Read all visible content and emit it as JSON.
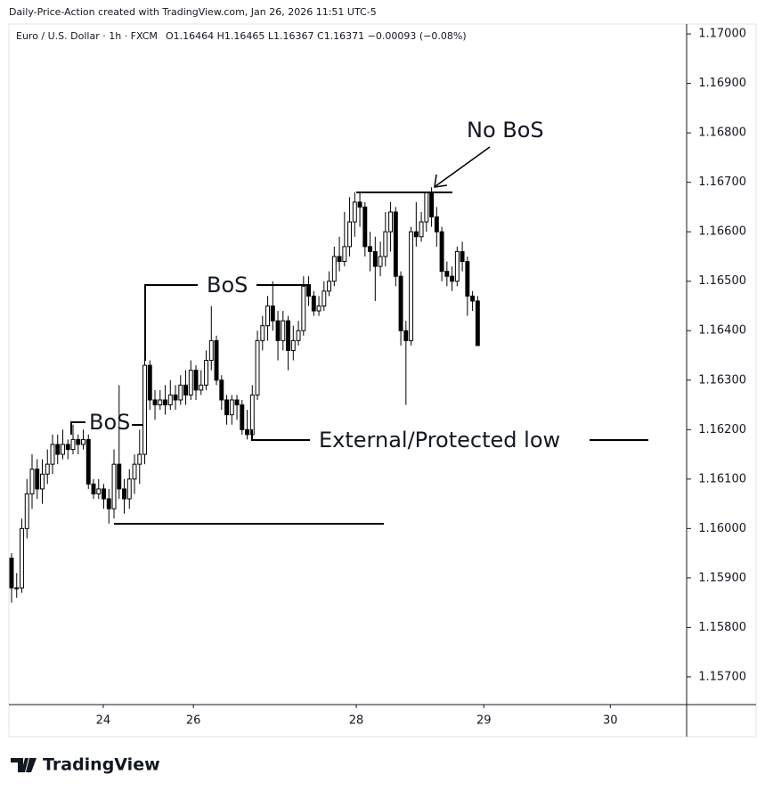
{
  "header": {
    "attribution": "Daily-Price-Action created with TradingView.com, Jan 26, 2026 11:51 UTC-5",
    "symbol": "Euro / U.S. Dollar · 1h · FXCM",
    "ohlc_legend": "O1.16464 H1.16465 L1.16367 C1.16371 −0.00093 (−0.08%)"
  },
  "chart_data": {
    "type": "candlestick",
    "open": [
      1.1594,
      1.1588,
      1.1588,
      1.16,
      1.1607,
      1.1612,
      1.1608,
      1.1611,
      1.1613,
      1.1617,
      1.1615,
      1.1617,
      1.1616,
      1.1618,
      1.1617,
      1.1618,
      1.1609,
      1.1607,
      1.1608,
      1.1606,
      1.1604,
      1.1613,
      1.1608,
      1.1606,
      1.161,
      1.1613,
      1.1615,
      1.1633,
      1.1626,
      1.1625,
      1.1626,
      1.1625,
      1.1627,
      1.1626,
      1.1629,
      1.1627,
      1.1632,
      1.1628,
      1.1629,
      1.1634,
      1.1638,
      1.163,
      1.1626,
      1.1623,
      1.1626,
      1.1625,
      1.162,
      1.1619,
      1.1627,
      1.1638,
      1.1641,
      1.1645,
      1.1642,
      1.1638,
      1.1642,
      1.1636,
      1.1638,
      1.164,
      1.1649,
      1.1647,
      1.1644,
      1.1645,
      1.1648,
      1.165,
      1.1655,
      1.1654,
      1.1657,
      1.1662,
      1.1666,
      1.1665,
      1.1657,
      1.1656,
      1.1653,
      1.1655,
      1.166,
      1.1664,
      1.1651,
      1.164,
      1.1638,
      1.166,
      1.1659,
      1.1662,
      1.1668,
      1.1663,
      1.166,
      1.1652,
      1.1651,
      1.165,
      1.1656,
      1.1654,
      1.1647,
      1.1646
    ],
    "high": [
      1.1595,
      1.1591,
      1.1602,
      1.161,
      1.1615,
      1.1614,
      1.1614,
      1.1616,
      1.1619,
      1.1619,
      1.162,
      1.1618,
      1.1621,
      1.1619,
      1.162,
      1.1619,
      1.161,
      1.161,
      1.1609,
      1.1608,
      1.1616,
      1.1629,
      1.161,
      1.1612,
      1.1615,
      1.162,
      1.1635,
      1.1634,
      1.1628,
      1.1628,
      1.1629,
      1.163,
      1.1629,
      1.1631,
      1.1632,
      1.1634,
      1.1633,
      1.1632,
      1.1636,
      1.1645,
      1.1639,
      1.1631,
      1.1627,
      1.1627,
      1.1627,
      1.1626,
      1.1624,
      1.1629,
      1.164,
      1.1643,
      1.1647,
      1.165,
      1.1644,
      1.1644,
      1.1643,
      1.1641,
      1.1642,
      1.1651,
      1.1651,
      1.1648,
      1.1647,
      1.165,
      1.1652,
      1.1657,
      1.1659,
      1.1664,
      1.1667,
      1.1668,
      1.1668,
      1.1666,
      1.166,
      1.1659,
      1.1658,
      1.1664,
      1.1666,
      1.1665,
      1.1652,
      1.1642,
      1.1661,
      1.1666,
      1.1664,
      1.1668,
      1.1669,
      1.1665,
      1.1661,
      1.1654,
      1.1653,
      1.1657,
      1.1658,
      1.1655,
      1.1648,
      1.1647
    ],
    "low": [
      1.1585,
      1.1586,
      1.1587,
      1.1598,
      1.1604,
      1.1606,
      1.1605,
      1.1609,
      1.1611,
      1.1613,
      1.1614,
      1.1614,
      1.1615,
      1.1615,
      1.1616,
      1.1608,
      1.1606,
      1.1606,
      1.1604,
      1.1601,
      1.1602,
      1.1606,
      1.1603,
      1.1604,
      1.1607,
      1.1609,
      1.1613,
      1.1624,
      1.1622,
      1.1624,
      1.1623,
      1.1624,
      1.1624,
      1.1625,
      1.1625,
      1.1626,
      1.1626,
      1.1627,
      1.1628,
      1.1632,
      1.1629,
      1.1624,
      1.1621,
      1.1621,
      1.1622,
      1.1619,
      1.1618,
      1.1618,
      1.1626,
      1.1636,
      1.1638,
      1.164,
      1.1634,
      1.1636,
      1.1632,
      1.1634,
      1.1637,
      1.1639,
      1.1645,
      1.1643,
      1.1643,
      1.1644,
      1.1647,
      1.1649,
      1.1652,
      1.1653,
      1.1655,
      1.1659,
      1.1661,
      1.1655,
      1.1652,
      1.1646,
      1.1651,
      1.1653,
      1.1656,
      1.1649,
      1.1637,
      1.1625,
      1.1637,
      1.1657,
      1.1658,
      1.166,
      1.1661,
      1.1657,
      1.165,
      1.1649,
      1.1648,
      1.1649,
      1.1652,
      1.1643,
      1.1644,
      1.1637
    ],
    "close": [
      1.1588,
      1.1588,
      1.16,
      1.1607,
      1.1612,
      1.1608,
      1.1611,
      1.1613,
      1.1617,
      1.1615,
      1.1617,
      1.1616,
      1.1618,
      1.1617,
      1.1618,
      1.1609,
      1.1607,
      1.1608,
      1.1606,
      1.1604,
      1.1613,
      1.1608,
      1.1606,
      1.161,
      1.1613,
      1.1615,
      1.1633,
      1.1626,
      1.1625,
      1.1626,
      1.1625,
      1.1627,
      1.1626,
      1.1629,
      1.1627,
      1.1632,
      1.1628,
      1.1629,
      1.1634,
      1.1638,
      1.163,
      1.1626,
      1.1623,
      1.1626,
      1.1625,
      1.162,
      1.1619,
      1.1627,
      1.1638,
      1.1641,
      1.1645,
      1.1642,
      1.1638,
      1.1642,
      1.1636,
      1.1638,
      1.164,
      1.1649,
      1.1647,
      1.1644,
      1.1645,
      1.1648,
      1.165,
      1.1655,
      1.1654,
      1.1657,
      1.1662,
      1.1666,
      1.1665,
      1.1657,
      1.1656,
      1.1653,
      1.1655,
      1.166,
      1.1664,
      1.1651,
      1.164,
      1.1638,
      1.166,
      1.1659,
      1.1662,
      1.1668,
      1.1663,
      1.166,
      1.1652,
      1.1651,
      1.165,
      1.1656,
      1.1654,
      1.1647,
      1.1646,
      1.1637
    ],
    "up_color": "#ffffff",
    "down_color": "#000000",
    "wick_color": "#000000",
    "xlim": [
      -0.52,
      131.8
    ],
    "xticks": [
      {
        "value": 17.9,
        "label": "24"
      },
      {
        "value": 35.5,
        "label": "26"
      },
      {
        "value": 67.3,
        "label": "28"
      },
      {
        "value": 92.2,
        "label": "29"
      },
      {
        "value": 116.9,
        "label": "30"
      }
    ],
    "ylim": [
      1.15644,
      1.1702
    ],
    "yticks": [
      {
        "value": 1.157,
        "label": "1.15700"
      },
      {
        "value": 1.158,
        "label": "1.15800"
      },
      {
        "value": 1.159,
        "label": "1.15900"
      },
      {
        "value": 1.16,
        "label": "1.16000"
      },
      {
        "value": 1.161,
        "label": "1.16100"
      },
      {
        "value": 1.162,
        "label": "1.16200"
      },
      {
        "value": 1.163,
        "label": "1.16300"
      },
      {
        "value": 1.164,
        "label": "1.16400"
      },
      {
        "value": 1.165,
        "label": "1.16500"
      },
      {
        "value": 1.166,
        "label": "1.16600"
      },
      {
        "value": 1.167,
        "label": "1.16700"
      },
      {
        "value": 1.168,
        "label": "1.16800"
      },
      {
        "value": 1.169,
        "label": "1.16900"
      },
      {
        "value": 1.17,
        "label": "1.17000"
      }
    ],
    "annotations": [
      "BoS",
      "BoS",
      "External/Protected low",
      "No BoS"
    ]
  },
  "footer": {
    "brand": "TradingView"
  }
}
